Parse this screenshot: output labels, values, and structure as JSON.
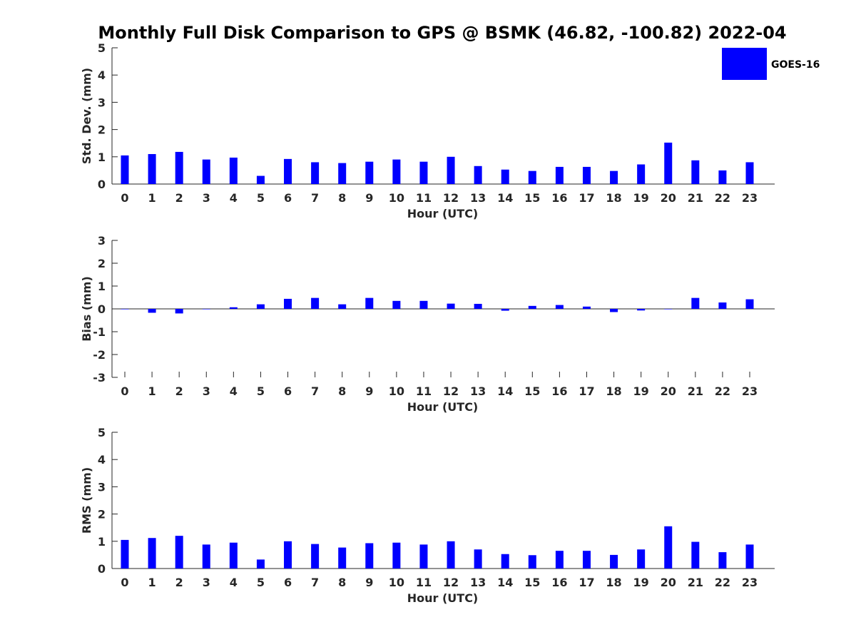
{
  "figure": {
    "title": "Monthly Full Disk Comparison to GPS @ BSMK (46.82, -100.82) 2022-04",
    "bar_color": "#0000ff"
  },
  "legend": {
    "label": "GOES-16",
    "placement": "top-right"
  },
  "chart_data": [
    {
      "type": "bar",
      "id": "std",
      "categories": [
        0,
        1,
        2,
        3,
        4,
        5,
        6,
        7,
        8,
        9,
        10,
        11,
        12,
        13,
        14,
        15,
        16,
        17,
        18,
        19,
        20,
        21,
        22,
        23
      ],
      "series": [
        {
          "name": "GOES-16",
          "values": [
            1.05,
            1.1,
            1.18,
            0.9,
            0.97,
            0.3,
            0.92,
            0.8,
            0.77,
            0.82,
            0.9,
            0.82,
            1.0,
            0.66,
            0.53,
            0.48,
            0.63,
            0.63,
            0.48,
            0.72,
            1.52,
            0.87,
            0.5,
            0.8
          ]
        }
      ],
      "xlabel": "Hour (UTC)",
      "ylabel": "Std. Dev. (mm)",
      "ylim": [
        0,
        5
      ],
      "yticks": [
        0,
        1,
        2,
        3,
        4,
        5
      ],
      "grid": false
    },
    {
      "type": "bar",
      "id": "bias",
      "categories": [
        0,
        1,
        2,
        3,
        4,
        5,
        6,
        7,
        8,
        9,
        10,
        11,
        12,
        13,
        14,
        15,
        16,
        17,
        18,
        19,
        20,
        21,
        22,
        23
      ],
      "series": [
        {
          "name": "GOES-16",
          "values": [
            0.0,
            -0.17,
            -0.2,
            0.0,
            0.07,
            0.2,
            0.44,
            0.48,
            0.2,
            0.48,
            0.35,
            0.35,
            0.23,
            0.22,
            -0.08,
            0.13,
            0.17,
            0.1,
            -0.14,
            -0.07,
            0.0,
            0.48,
            0.28,
            0.42
          ]
        }
      ],
      "xlabel": "Hour (UTC)",
      "ylabel": "Bias (mm)",
      "ylim": [
        -3,
        3
      ],
      "yticks": [
        -3,
        -2,
        -1,
        0,
        1,
        2,
        3
      ],
      "grid": false
    },
    {
      "type": "bar",
      "id": "rms",
      "categories": [
        0,
        1,
        2,
        3,
        4,
        5,
        6,
        7,
        8,
        9,
        10,
        11,
        12,
        13,
        14,
        15,
        16,
        17,
        18,
        19,
        20,
        21,
        22,
        23
      ],
      "series": [
        {
          "name": "GOES-16",
          "values": [
            1.05,
            1.12,
            1.2,
            0.88,
            0.95,
            0.33,
            1.0,
            0.9,
            0.77,
            0.93,
            0.95,
            0.88,
            1.0,
            0.7,
            0.53,
            0.49,
            0.65,
            0.65,
            0.5,
            0.7,
            1.55,
            0.98,
            0.6,
            0.88
          ]
        }
      ],
      "xlabel": "Hour (UTC)",
      "ylabel": "RMS (mm)",
      "ylim": [
        0,
        5
      ],
      "yticks": [
        0,
        1,
        2,
        3,
        4,
        5
      ],
      "grid": false
    }
  ]
}
